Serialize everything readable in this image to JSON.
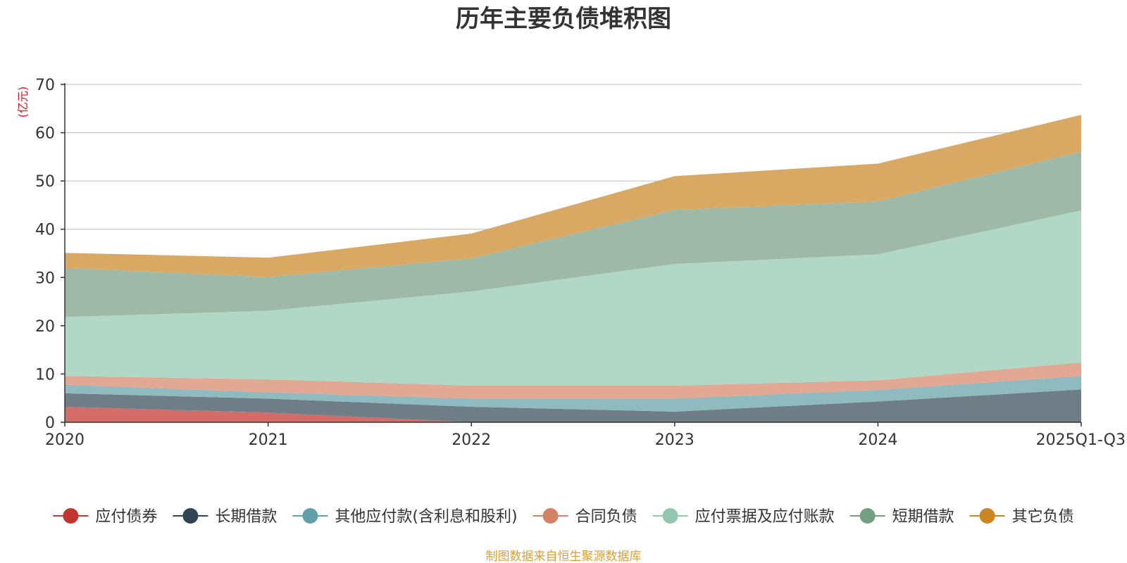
{
  "chart_data": {
    "type": "area",
    "stacked": true,
    "title": "历年主要负债堆积图",
    "unit_label": "(亿元)",
    "source": "制图数据来自恒生聚源数据库",
    "categories": [
      "2020",
      "2021",
      "2022",
      "2023",
      "2024",
      "2025Q1-Q3"
    ],
    "ylim": [
      0,
      70
    ],
    "yticks": [
      0,
      10,
      20,
      30,
      40,
      50,
      60,
      70
    ],
    "grid": true,
    "legend_position": "bottom",
    "series": [
      {
        "name": "应付债券",
        "color": "#c23531",
        "fill": "#d46c69",
        "values": [
          3.2,
          2.0,
          0.0,
          0.0,
          0.0,
          0.0
        ]
      },
      {
        "name": "长期借款",
        "color": "#2f4554",
        "fill": "#6e7d86",
        "values": [
          2.8,
          2.9,
          3.2,
          2.2,
          4.3,
          6.8
        ]
      },
      {
        "name": "其他应付款(含利息和股利)",
        "color": "#61a0a8",
        "fill": "#8fbac0",
        "values": [
          1.8,
          1.3,
          1.7,
          2.7,
          2.4,
          2.8
        ]
      },
      {
        "name": "合同负债",
        "color": "#d48265",
        "fill": "#e3a893",
        "values": [
          1.8,
          2.7,
          2.7,
          2.7,
          2.0,
          2.8
        ]
      },
      {
        "name": "应付票据及应付账款",
        "color": "#91c7ae",
        "fill": "#b1d8c6",
        "values": [
          12.2,
          14.2,
          19.5,
          25.2,
          26.1,
          31.5
        ]
      },
      {
        "name": "短期借款",
        "color": "#749f83",
        "fill": "#9eb9a7",
        "values": [
          10.2,
          7.0,
          6.9,
          11.2,
          11.0,
          12.2
        ]
      },
      {
        "name": "其它负债",
        "color": "#ca8622",
        "fill": "#d9a963",
        "values": [
          3.1,
          4.0,
          5.1,
          7.0,
          7.8,
          7.6
        ]
      }
    ]
  }
}
